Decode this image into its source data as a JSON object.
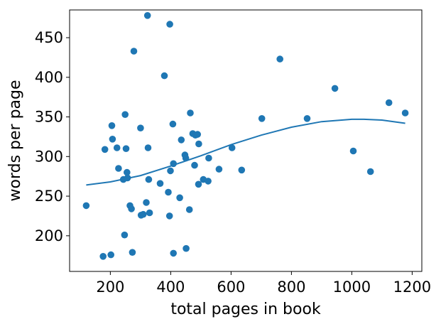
{
  "chart_data": {
    "type": "scatter",
    "title": "",
    "xlabel": "total pages in book",
    "ylabel": "words per page",
    "xlim": [
      65,
      1232
    ],
    "ylim": [
      155,
      485
    ],
    "grid": false,
    "x_ticks": [
      200,
      400,
      600,
      800,
      1000,
      1200
    ],
    "y_ticks": [
      200,
      250,
      300,
      350,
      400,
      450
    ],
    "colors": {
      "points": "#1f77b4",
      "trend": "#1f77b4",
      "axes": "#000000"
    },
    "points": [
      {
        "x": 120,
        "y": 238
      },
      {
        "x": 176,
        "y": 174
      },
      {
        "x": 182,
        "y": 309
      },
      {
        "x": 202,
        "y": 176
      },
      {
        "x": 205,
        "y": 339
      },
      {
        "x": 207,
        "y": 322
      },
      {
        "x": 222,
        "y": 311
      },
      {
        "x": 227,
        "y": 285
      },
      {
        "x": 243,
        "y": 271
      },
      {
        "x": 247,
        "y": 201
      },
      {
        "x": 249,
        "y": 353
      },
      {
        "x": 252,
        "y": 310
      },
      {
        "x": 255,
        "y": 280
      },
      {
        "x": 257,
        "y": 273
      },
      {
        "x": 265,
        "y": 238
      },
      {
        "x": 270,
        "y": 234
      },
      {
        "x": 273,
        "y": 179
      },
      {
        "x": 278,
        "y": 433
      },
      {
        "x": 300,
        "y": 336
      },
      {
        "x": 302,
        "y": 226
      },
      {
        "x": 309,
        "y": 227
      },
      {
        "x": 319,
        "y": 242
      },
      {
        "x": 323,
        "y": 478
      },
      {
        "x": 325,
        "y": 311
      },
      {
        "x": 327,
        "y": 271
      },
      {
        "x": 330,
        "y": 229
      },
      {
        "x": 365,
        "y": 266
      },
      {
        "x": 379,
        "y": 402
      },
      {
        "x": 392,
        "y": 255
      },
      {
        "x": 396,
        "y": 225
      },
      {
        "x": 397,
        "y": 467
      },
      {
        "x": 399,
        "y": 282
      },
      {
        "x": 407,
        "y": 341
      },
      {
        "x": 409,
        "y": 291
      },
      {
        "x": 409,
        "y": 178
      },
      {
        "x": 430,
        "y": 248
      },
      {
        "x": 435,
        "y": 321
      },
      {
        "x": 447,
        "y": 302
      },
      {
        "x": 450,
        "y": 298
      },
      {
        "x": 451,
        "y": 184
      },
      {
        "x": 462,
        "y": 233
      },
      {
        "x": 465,
        "y": 355
      },
      {
        "x": 473,
        "y": 329
      },
      {
        "x": 479,
        "y": 289
      },
      {
        "x": 482,
        "y": 327
      },
      {
        "x": 489,
        "y": 328
      },
      {
        "x": 492,
        "y": 265
      },
      {
        "x": 493,
        "y": 316
      },
      {
        "x": 508,
        "y": 271
      },
      {
        "x": 524,
        "y": 269
      },
      {
        "x": 526,
        "y": 298
      },
      {
        "x": 560,
        "y": 284
      },
      {
        "x": 603,
        "y": 311
      },
      {
        "x": 635,
        "y": 283
      },
      {
        "x": 702,
        "y": 348
      },
      {
        "x": 762,
        "y": 423
      },
      {
        "x": 852,
        "y": 348
      },
      {
        "x": 944,
        "y": 386
      },
      {
        "x": 1005,
        "y": 307
      },
      {
        "x": 1062,
        "y": 281
      },
      {
        "x": 1123,
        "y": 368
      },
      {
        "x": 1177,
        "y": 355
      }
    ],
    "trend_line": {
      "x": [
        120,
        200,
        300,
        400,
        500,
        600,
        700,
        800,
        900,
        1000,
        1040,
        1100,
        1177
      ],
      "y": [
        264,
        268,
        276,
        288,
        301,
        315,
        327,
        337,
        344,
        347,
        347,
        346,
        342
      ]
    }
  }
}
